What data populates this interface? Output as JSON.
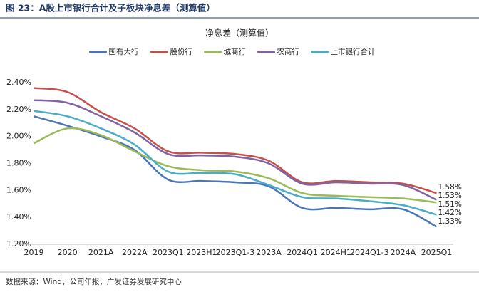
{
  "header": {
    "title": "图 23：A股上市银行合计及子板块净息差（测算值）"
  },
  "source": "数据来源：Wind，公司年报，广发证券发展研究中心",
  "chart_data": {
    "type": "line",
    "title": "净息差（测算值）",
    "legend": "top",
    "grid": false,
    "categories": [
      "2019",
      "2020",
      "2021A",
      "2022A",
      "2023Q1",
      "2023H1",
      "2023Q1-3",
      "2023A",
      "2024Q1",
      "2024H1",
      "2024Q1-3",
      "2024A",
      "2025Q1"
    ],
    "ylim": [
      1.2,
      2.4
    ],
    "yticks": [
      {
        "value": 1.2,
        "label": "1.20%"
      },
      {
        "value": 1.4,
        "label": "1.40%"
      },
      {
        "value": 1.6,
        "label": "1.60%"
      },
      {
        "value": 1.8,
        "label": "1.80%"
      },
      {
        "value": 2.0,
        "label": "2.00%"
      },
      {
        "value": 2.2,
        "label": "2.20%"
      },
      {
        "value": 2.4,
        "label": "2.40%"
      }
    ],
    "series": [
      {
        "name": "国有大行",
        "color": "#4a76b8",
        "values": [
          2.15,
          2.08,
          2.0,
          1.9,
          1.68,
          1.67,
          1.66,
          1.63,
          1.47,
          1.47,
          1.46,
          1.46,
          1.33
        ],
        "value_labels": [
          null,
          null,
          null,
          null,
          null,
          null,
          null,
          null,
          null,
          null,
          null,
          null,
          "1.33%"
        ]
      },
      {
        "name": "股份行",
        "color": "#c4504c",
        "values": [
          2.36,
          2.33,
          2.18,
          2.06,
          1.89,
          1.88,
          1.87,
          1.82,
          1.66,
          1.67,
          1.66,
          1.65,
          1.58
        ],
        "value_labels": [
          null,
          null,
          null,
          null,
          null,
          null,
          null,
          null,
          null,
          null,
          null,
          null,
          "1.58%"
        ]
      },
      {
        "name": "城商行",
        "color": "#9bbb59",
        "values": [
          1.95,
          2.06,
          2.01,
          1.89,
          1.78,
          1.75,
          1.74,
          1.69,
          1.58,
          1.56,
          1.55,
          1.54,
          1.51
        ],
        "value_labels": [
          null,
          null,
          null,
          null,
          null,
          null,
          null,
          null,
          null,
          null,
          null,
          null,
          "1.51%"
        ]
      },
      {
        "name": "农商行",
        "color": "#8064a2",
        "values": [
          2.27,
          2.25,
          2.15,
          2.03,
          1.87,
          1.86,
          1.85,
          1.8,
          1.65,
          1.66,
          1.65,
          1.64,
          1.53
        ],
        "value_labels": [
          null,
          null,
          null,
          null,
          null,
          null,
          null,
          null,
          null,
          null,
          null,
          null,
          "1.53%"
        ]
      },
      {
        "name": "上市银行合计",
        "color": "#4bacc6",
        "values": [
          2.19,
          2.15,
          2.06,
          1.94,
          1.74,
          1.73,
          1.72,
          1.64,
          1.55,
          1.54,
          1.52,
          1.49,
          1.42
        ],
        "value_labels": [
          null,
          null,
          null,
          null,
          null,
          null,
          null,
          null,
          null,
          null,
          null,
          null,
          "1.42%"
        ]
      }
    ]
  }
}
